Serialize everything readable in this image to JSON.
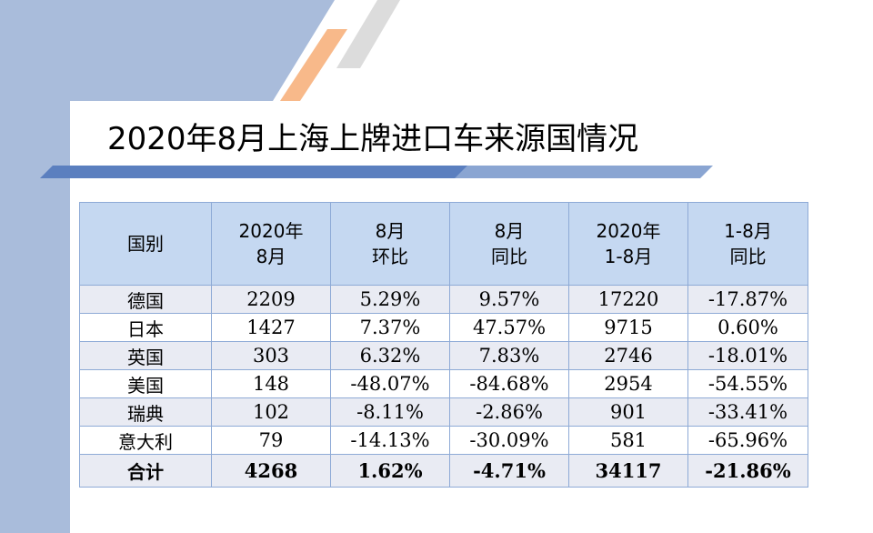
{
  "title": "2020年8月上海上牌进口车来源国情况",
  "colors": {
    "side_panel": "#a9bcdb",
    "header_fill": "#c5d8f1",
    "row_fill": "#e9ebf3",
    "border": "#8eaad6",
    "accent_orange": "#f8b98a",
    "accent_gray": "#dcdcdc",
    "underline": "#5b7fbf"
  },
  "table": {
    "headers": [
      [
        "国别"
      ],
      [
        "2020年",
        "8月"
      ],
      [
        "8月",
        "环比"
      ],
      [
        "8月",
        "同比"
      ],
      [
        "2020年",
        "1-8月"
      ],
      [
        "1-8月",
        "同比"
      ]
    ],
    "rows": [
      [
        "德国",
        "2209",
        "5.29%",
        "9.57%",
        "17220",
        "-17.87%"
      ],
      [
        "日本",
        "1427",
        "7.37%",
        "47.57%",
        "9715",
        "0.60%"
      ],
      [
        "英国",
        "303",
        "6.32%",
        "7.83%",
        "2746",
        "-18.01%"
      ],
      [
        "美国",
        "148",
        "-48.07%",
        "-84.68%",
        "2954",
        "-54.55%"
      ],
      [
        "瑞典",
        "102",
        "-8.11%",
        "-2.86%",
        "901",
        "-33.41%"
      ],
      [
        "意大利",
        "79",
        "-14.13%",
        "-30.09%",
        "581",
        "-65.96%"
      ]
    ],
    "total": [
      "合计",
      "4268",
      "1.62%",
      "-4.71%",
      "34117",
      "-21.86%"
    ]
  }
}
